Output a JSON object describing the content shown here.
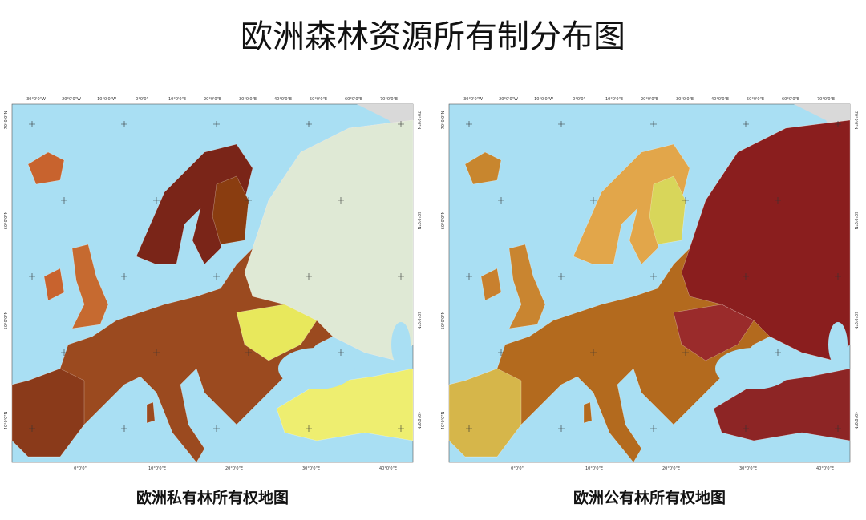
{
  "title": "欧洲森林资源所有制分布图",
  "maps": [
    {
      "caption": "欧洲私有林所有权地图",
      "top_labels": [
        "30°0'0\"W",
        "20°0'0\"W",
        "10°0'0\"W",
        "0°0'0\"",
        "10°0'0\"E",
        "20°0'0\"E",
        "30°0'0\"E",
        "40°0'0\"E",
        "50°0'0\"E",
        "60°0'0\"E",
        "70°0'0\"E"
      ],
      "bottom_labels": [
        "0°0'0\"",
        "10°0'0\"E",
        "20°0'0\"E",
        "30°0'0\"E",
        "40°0'0\"E"
      ],
      "left_labels": [
        "70°0'0\"N",
        "60°0'0\"N",
        "50°0'0\"N",
        "40°0'0\"N"
      ],
      "right_labels": [
        "70°0'0\"N",
        "60°0'0\"N",
        "50°0'0\"N",
        "40°0'0\"N"
      ]
    },
    {
      "caption": "欧洲公有林所有权地图",
      "top_labels": [
        "30°0'0\"W",
        "20°0'0\"W",
        "10°0'0\"W",
        "0°0'0\"",
        "10°0'0\"E",
        "20°0'0\"E",
        "30°0'0\"E",
        "40°0'0\"E",
        "50°0'0\"E",
        "60°0'0\"E",
        "70°0'0\"E"
      ],
      "bottom_labels": [
        "0°0'0\"",
        "10°0'0\"E",
        "20°0'0\"E",
        "30°0'0\"E",
        "40°0'0\"E"
      ],
      "left_labels": [
        "70°0'0\"N",
        "60°0'0\"N",
        "50°0'0\"N",
        "40°0'0\"N"
      ],
      "right_labels": [
        "70°0'0\"N",
        "60°0'0\"N",
        "50°0'0\"N",
        "40°0'0\"N"
      ]
    }
  ]
}
